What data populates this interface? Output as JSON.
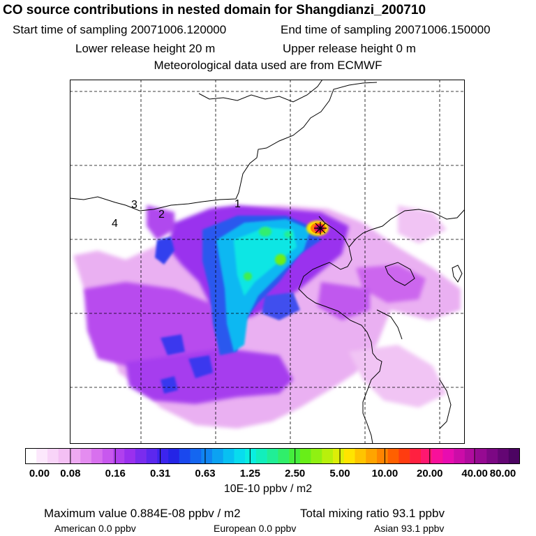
{
  "header": {
    "title": "CO  source contributions in nested domain for Shangdianzi_200710",
    "start_time": "Start time of sampling 20071006.120000",
    "end_time": "End time of sampling 20071006.150000",
    "lower_height": "Lower release height   20 m",
    "upper_height": "Upper release height    0 m",
    "met_data": "Meteorological data used are from ECMWF"
  },
  "map": {
    "region_labels": [
      "1",
      "2",
      "3",
      "4"
    ],
    "station_marker": "star-marker"
  },
  "colorbar": {
    "tick_labels": [
      "0.00",
      "0.08",
      "0.16",
      "0.31",
      "0.63",
      "1.25",
      "2.50",
      "5.00",
      "10.00",
      "20.00",
      "40.00",
      "80.00"
    ],
    "units": "10E-10 ppbv / m2",
    "colors": [
      "#ffffff",
      "#fce8fc",
      "#f8d4f8",
      "#f4c0f4",
      "#eeaaf2",
      "#e48cf0",
      "#d870ee",
      "#c858ee",
      "#b040ee",
      "#9a30ee",
      "#7a2cee",
      "#5c28ee",
      "#3c24ee",
      "#2424e6",
      "#1a48ee",
      "#1466f0",
      "#1084f2",
      "#0ca2f2",
      "#08c0f2",
      "#08dcee",
      "#0aeee0",
      "#12eebc",
      "#20ee96",
      "#30ee6a",
      "#44ee3c",
      "#68ee18",
      "#90f012",
      "#b8f00c",
      "#ddee08",
      "#ffe400",
      "#ffc400",
      "#ffa400",
      "#ff8400",
      "#ff6000",
      "#ff3c10",
      "#ff2040",
      "#ff1870",
      "#f8109a",
      "#e80cb0",
      "#cc0ca8",
      "#b00c9e",
      "#960a92",
      "#7c0884",
      "#640674",
      "#4c0462"
    ]
  },
  "footer": {
    "max_value": "Maximum value  0.884E-08 ppbv / m2",
    "total_mixing": "Total mixing ratio      93.1 ppbv",
    "american": "American       0.0 ppbv",
    "european": "European       0.0 ppbv",
    "asian": "Asian     93.1 ppbv"
  }
}
